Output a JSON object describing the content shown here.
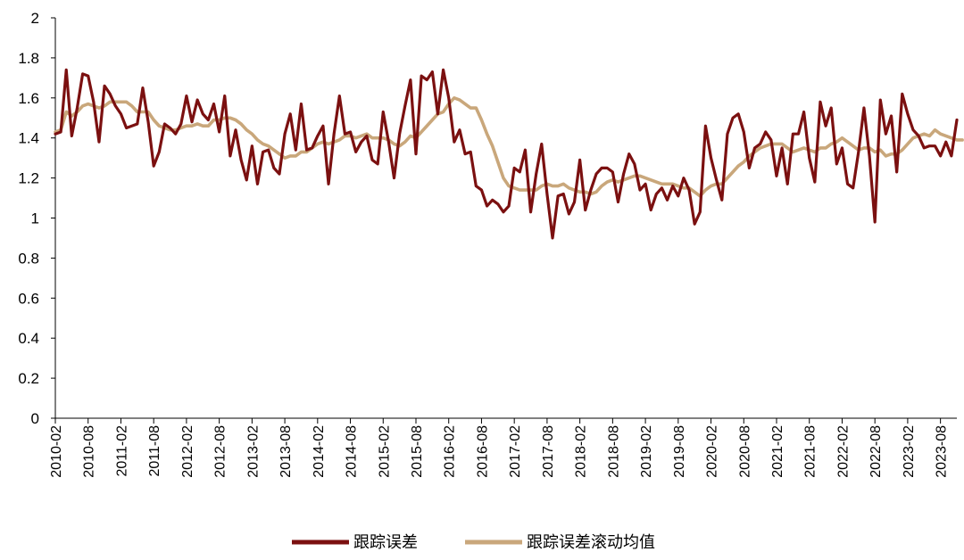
{
  "chart_data": {
    "type": "line",
    "title": "",
    "xlabel": "",
    "ylabel": "",
    "ylim": [
      0,
      2
    ],
    "yticks": [
      "0",
      "0.2",
      "0.4",
      "0.6",
      "0.8",
      "1",
      "1.2",
      "1.4",
      "1.6",
      "1.8",
      "2"
    ],
    "xtick_labels": [
      "2010-02",
      "2010-08",
      "2011-02",
      "2011-08",
      "2012-02",
      "2012-08",
      "2013-02",
      "2013-08",
      "2014-02",
      "2014-08",
      "2015-02",
      "2015-08",
      "2016-02",
      "2016-08",
      "2017-02",
      "2017-08",
      "2018-02",
      "2018-08",
      "2019-02",
      "2019-08",
      "2020-02",
      "2020-08",
      "2021-02",
      "2021-08",
      "2022-02",
      "2022-08",
      "2023-02",
      "2023-08"
    ],
    "start_month": "2010-02",
    "legend_position": "bottom",
    "series": [
      {
        "name": "跟踪误差",
        "color": "#7B1010",
        "values": [
          1.42,
          1.43,
          1.74,
          1.41,
          1.55,
          1.72,
          1.71,
          1.58,
          1.38,
          1.66,
          1.62,
          1.56,
          1.52,
          1.45,
          1.46,
          1.47,
          1.65,
          1.48,
          1.26,
          1.33,
          1.47,
          1.45,
          1.42,
          1.47,
          1.61,
          1.48,
          1.59,
          1.52,
          1.49,
          1.57,
          1.43,
          1.61,
          1.31,
          1.44,
          1.29,
          1.19,
          1.36,
          1.17,
          1.33,
          1.34,
          1.25,
          1.22,
          1.42,
          1.52,
          1.34,
          1.57,
          1.34,
          1.35,
          1.41,
          1.46,
          1.17,
          1.42,
          1.61,
          1.42,
          1.43,
          1.33,
          1.38,
          1.41,
          1.29,
          1.27,
          1.53,
          1.38,
          1.2,
          1.42,
          1.56,
          1.69,
          1.32,
          1.71,
          1.69,
          1.73,
          1.52,
          1.74,
          1.6,
          1.38,
          1.44,
          1.32,
          1.33,
          1.16,
          1.14,
          1.06,
          1.09,
          1.07,
          1.03,
          1.06,
          1.25,
          1.23,
          1.34,
          1.03,
          1.22,
          1.37,
          1.12,
          0.9,
          1.11,
          1.12,
          1.02,
          1.08,
          1.29,
          1.04,
          1.14,
          1.22,
          1.25,
          1.25,
          1.23,
          1.08,
          1.22,
          1.32,
          1.27,
          1.14,
          1.17,
          1.04,
          1.12,
          1.15,
          1.09,
          1.16,
          1.11,
          1.2,
          1.14,
          0.97,
          1.03,
          1.46,
          1.3,
          1.19,
          1.09,
          1.42,
          1.5,
          1.52,
          1.43,
          1.25,
          1.35,
          1.37,
          1.43,
          1.39,
          1.21,
          1.35,
          1.17,
          1.42,
          1.42,
          1.53,
          1.3,
          1.18,
          1.58,
          1.46,
          1.55,
          1.27,
          1.35,
          1.17,
          1.15,
          1.33,
          1.55,
          1.31,
          0.98,
          1.59,
          1.42,
          1.51,
          1.23,
          1.62,
          1.52,
          1.44,
          1.41,
          1.35,
          1.36,
          1.36,
          1.31,
          1.38,
          1.31,
          1.49
        ]
      },
      {
        "name": "跟踪误差滚动均值",
        "color": "#C9A77B",
        "values": [
          1.43,
          1.44,
          1.53,
          1.51,
          1.53,
          1.56,
          1.57,
          1.56,
          1.55,
          1.56,
          1.58,
          1.58,
          1.58,
          1.58,
          1.56,
          1.53,
          1.53,
          1.53,
          1.49,
          1.46,
          1.45,
          1.44,
          1.44,
          1.45,
          1.46,
          1.46,
          1.47,
          1.46,
          1.46,
          1.49,
          1.49,
          1.5,
          1.5,
          1.49,
          1.47,
          1.44,
          1.42,
          1.39,
          1.37,
          1.36,
          1.34,
          1.32,
          1.3,
          1.31,
          1.31,
          1.33,
          1.33,
          1.35,
          1.37,
          1.38,
          1.37,
          1.38,
          1.39,
          1.41,
          1.41,
          1.4,
          1.41,
          1.42,
          1.4,
          1.4,
          1.4,
          1.39,
          1.37,
          1.36,
          1.38,
          1.41,
          1.4,
          1.43,
          1.46,
          1.49,
          1.52,
          1.53,
          1.57,
          1.6,
          1.59,
          1.57,
          1.55,
          1.55,
          1.49,
          1.42,
          1.36,
          1.28,
          1.2,
          1.16,
          1.15,
          1.14,
          1.14,
          1.14,
          1.14,
          1.16,
          1.17,
          1.16,
          1.16,
          1.17,
          1.15,
          1.14,
          1.13,
          1.13,
          1.12,
          1.13,
          1.16,
          1.18,
          1.19,
          1.18,
          1.19,
          1.2,
          1.21,
          1.21,
          1.2,
          1.19,
          1.18,
          1.17,
          1.17,
          1.17,
          1.16,
          1.15,
          1.15,
          1.13,
          1.11,
          1.14,
          1.16,
          1.17,
          1.17,
          1.2,
          1.23,
          1.26,
          1.28,
          1.31,
          1.33,
          1.35,
          1.36,
          1.37,
          1.37,
          1.37,
          1.35,
          1.33,
          1.34,
          1.35,
          1.34,
          1.33,
          1.35,
          1.35,
          1.37,
          1.38,
          1.4,
          1.38,
          1.36,
          1.34,
          1.35,
          1.35,
          1.33,
          1.34,
          1.31,
          1.32,
          1.32,
          1.34,
          1.37,
          1.4,
          1.41,
          1.42,
          1.41,
          1.44,
          1.42,
          1.41,
          1.4,
          1.39,
          1.39
        ]
      }
    ]
  }
}
